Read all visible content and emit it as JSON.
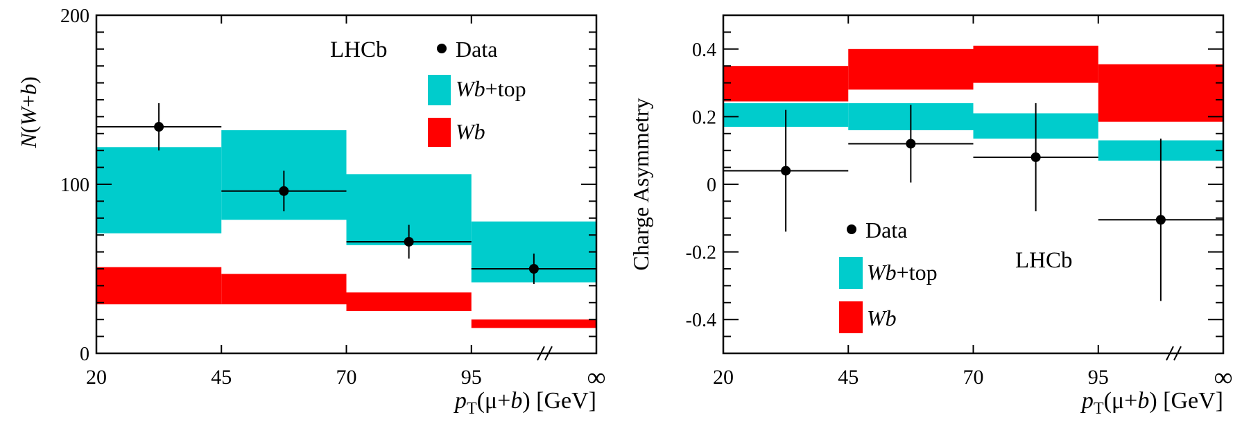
{
  "colors": {
    "wbtop": "#00cccc",
    "wb": "#ff0000",
    "data": "#000000",
    "axis": "#000000"
  },
  "chart_data": [
    {
      "type": "bar",
      "title": "",
      "experiment_label": "LHCb",
      "ylabel": "N(W+b)",
      "ylabel_parts": {
        "n": "N",
        "open": "(",
        "w": "W",
        "plus": "+",
        "b": "b",
        "close": ")"
      },
      "xlabel": "p_T(μ+b) [GeV]",
      "xlabel_parts": {
        "p": "p",
        "sub": "T",
        "open": "(μ+",
        "b": "b",
        "close": ") [GeV]"
      },
      "bin_edges": [
        20,
        45,
        70,
        95,
        "∞"
      ],
      "x_tick_labels": [
        "20",
        "45",
        "70",
        "95",
        "∞"
      ],
      "ylim": [
        0,
        200
      ],
      "y_tick_values": [
        0,
        100,
        200
      ],
      "y_tick_labels": [
        "0",
        "100",
        "200"
      ],
      "legend": {
        "data": "Data",
        "wbtop": "Wb+top",
        "wbtop_it": "Wb",
        "wbtop_rest": "+top",
        "wb": "Wb"
      },
      "series": [
        {
          "name": "Wb+top",
          "kind": "band",
          "low": [
            71,
            79,
            64,
            42
          ],
          "high": [
            122,
            132,
            106,
            78
          ]
        },
        {
          "name": "Wb",
          "kind": "band",
          "low": [
            29,
            29,
            25,
            15
          ],
          "high": [
            51,
            47,
            36,
            20
          ]
        },
        {
          "name": "Data",
          "kind": "points",
          "values": [
            134,
            96,
            66,
            50
          ],
          "err": [
            14,
            12,
            10,
            9
          ]
        }
      ]
    },
    {
      "type": "bar",
      "title": "",
      "experiment_label": "LHCb",
      "ylabel": "Charge Asymmetry",
      "xlabel": "p_T(μ+b) [GeV]",
      "xlabel_parts": {
        "p": "p",
        "sub": "T",
        "open": "(μ+",
        "b": "b",
        "close": ") [GeV]"
      },
      "bin_edges": [
        20,
        45,
        70,
        95,
        "∞"
      ],
      "x_tick_labels": [
        "20",
        "45",
        "70",
        "95",
        "∞"
      ],
      "ylim": [
        -0.5,
        0.5
      ],
      "y_tick_values": [
        -0.4,
        -0.2,
        0,
        0.2,
        0.4
      ],
      "y_tick_labels": [
        "-0.4",
        "-0.2",
        "0",
        "0.2",
        "0.4"
      ],
      "legend": {
        "data": "Data",
        "wbtop": "Wb+top",
        "wbtop_it": "Wb",
        "wbtop_rest": "+top",
        "wb": "Wb"
      },
      "series": [
        {
          "name": "Wb+top",
          "kind": "band",
          "low": [
            0.17,
            0.16,
            0.135,
            0.07
          ],
          "high": [
            0.24,
            0.24,
            0.21,
            0.13
          ]
        },
        {
          "name": "Wb",
          "kind": "band",
          "low": [
            0.245,
            0.28,
            0.3,
            0.185
          ],
          "high": [
            0.35,
            0.4,
            0.41,
            0.355
          ]
        },
        {
          "name": "Data",
          "kind": "points",
          "values": [
            0.04,
            0.12,
            0.08,
            -0.105
          ],
          "err": [
            0.18,
            0.115,
            0.16,
            0.24
          ]
        }
      ]
    }
  ]
}
